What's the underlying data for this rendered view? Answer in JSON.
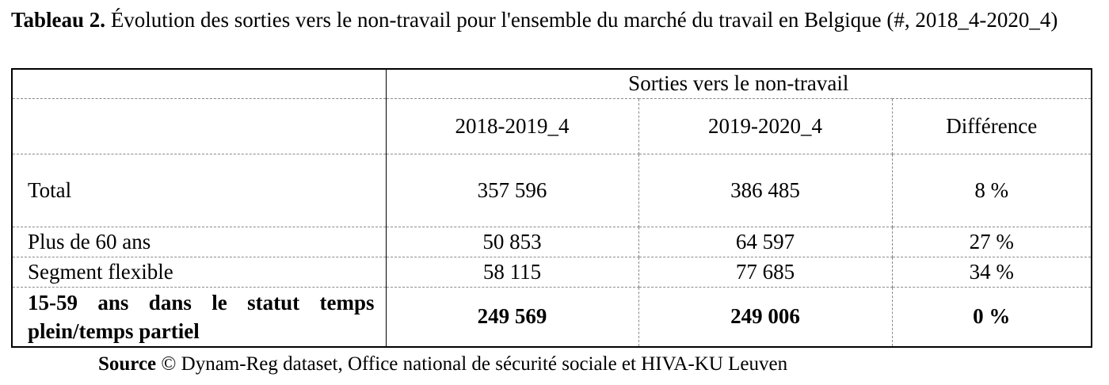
{
  "caption": {
    "label": "Tableau 2.",
    "text": "Évolution des sorties vers le non-travail pour l'ensemble du marché du travail en Belgique (#, 2018_4-2020_4)"
  },
  "table": {
    "group_header": "Sorties vers le non-travail",
    "columns": [
      "2018-2019_4",
      "2019-2020_4",
      "Différence"
    ],
    "rows": [
      {
        "label": "Total",
        "values": [
          "357 596",
          "386 485",
          "8 %"
        ],
        "bold": false
      },
      {
        "label": "Plus de 60 ans",
        "values": [
          "50 853",
          "64 597",
          "27 %"
        ],
        "bold": false
      },
      {
        "label": "Segment flexible",
        "values": [
          "58 115",
          "77 685",
          "34 %"
        ],
        "bold": false
      },
      {
        "label": "15-59 ans dans le statut temps plein/temps partiel",
        "values": [
          "249 569",
          "249 006",
          "0 %"
        ],
        "bold": true
      }
    ]
  },
  "source": {
    "label": "Source",
    "text": "© Dynam-Reg dataset, Office national de sécurité sociale et HIVA-KU Leuven"
  }
}
